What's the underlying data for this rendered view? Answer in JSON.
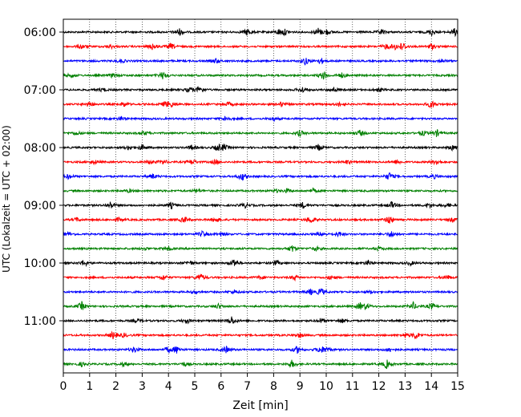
{
  "chart_data": {
    "type": "line",
    "title": "",
    "xlabel": "Zeit  [min]",
    "ylabel": "UTC (Lokalzeit = UTC + 02:00)",
    "xlim": [
      0,
      15
    ],
    "x_ticks": [
      "0",
      "1",
      "2",
      "3",
      "4",
      "5",
      "6",
      "7",
      "8",
      "9",
      "10",
      "11",
      "12",
      "13",
      "14",
      "15"
    ],
    "y_tick_labels": [
      "06:00",
      "07:00",
      "08:00",
      "09:00",
      "10:00",
      "11:00"
    ],
    "grid": "vertical dotted at each minute",
    "trace_colors": [
      "#000000",
      "#ff0000",
      "#0000ff",
      "#008000"
    ],
    "traces": [
      {
        "start": "06:00",
        "bursts": [
          [
            4.4,
            0.8
          ],
          [
            7.0,
            0.7
          ],
          [
            8.2,
            0.6
          ],
          [
            8.4,
            0.7
          ],
          [
            9.7,
            0.9
          ],
          [
            10.0,
            0.6
          ],
          [
            12.1,
            0.5
          ],
          [
            14.0,
            0.7
          ],
          [
            14.9,
            0.8
          ]
        ]
      },
      {
        "start": "06:15",
        "bursts": [
          [
            0.7,
            0.5
          ],
          [
            1.8,
            0.4
          ],
          [
            3.4,
            0.7
          ],
          [
            4.1,
            0.6
          ],
          [
            4.1,
            0.6
          ],
          [
            12.3,
            0.6
          ],
          [
            12.9,
            0.9
          ],
          [
            12.6,
            0.7
          ],
          [
            14.0,
            0.6
          ]
        ]
      },
      {
        "start": "06:30",
        "bursts": [
          [
            2.2,
            0.4
          ],
          [
            5.8,
            0.5
          ],
          [
            9.2,
            0.8
          ],
          [
            9.8,
            0.6
          ],
          [
            14.4,
            0.4
          ]
        ]
      },
      {
        "start": "06:45",
        "bursts": [
          [
            0.3,
            0.4
          ],
          [
            1.9,
            0.5
          ],
          [
            3.8,
            0.8
          ],
          [
            9.9,
            0.9
          ],
          [
            10.6,
            0.5
          ]
        ]
      },
      {
        "start": "07:00",
        "bursts": [
          [
            1.5,
            0.4
          ],
          [
            4.8,
            0.6
          ],
          [
            5.2,
            0.9
          ],
          [
            9.1,
            0.6
          ],
          [
            10.3,
            0.5
          ],
          [
            12.0,
            0.4
          ]
        ]
      },
      {
        "start": "07:15",
        "bursts": [
          [
            1.0,
            0.6
          ],
          [
            2.3,
            0.5
          ],
          [
            3.9,
            0.7
          ],
          [
            4.1,
            0.7
          ],
          [
            6.3,
            0.4
          ],
          [
            8.3,
            0.5
          ],
          [
            14.0,
            0.8
          ],
          [
            10.5,
            0.4
          ]
        ]
      },
      {
        "start": "07:30",
        "bursts": [
          [
            2.2,
            0.4
          ],
          [
            6.2,
            0.6
          ],
          [
            8.0,
            0.4
          ]
        ]
      },
      {
        "start": "07:45",
        "bursts": [
          [
            0.5,
            0.4
          ],
          [
            3.1,
            0.4
          ],
          [
            9.0,
            0.6
          ],
          [
            11.3,
            0.6
          ],
          [
            13.7,
            0.5
          ],
          [
            14.2,
            0.7
          ]
        ]
      },
      {
        "start": "08:00",
        "bursts": [
          [
            2.5,
            0.5
          ],
          [
            3.0,
            0.6
          ],
          [
            4.9,
            0.5
          ],
          [
            5.9,
            0.8
          ],
          [
            6.1,
            0.7
          ],
          [
            9.7,
            0.6
          ],
          [
            14.8,
            0.5
          ]
        ]
      },
      {
        "start": "08:15",
        "bursts": [
          [
            1.2,
            0.4
          ],
          [
            3.3,
            0.4
          ],
          [
            3.8,
            0.5
          ],
          [
            5.8,
            0.5
          ],
          [
            4.9,
            0.6
          ],
          [
            10.8,
            0.4
          ],
          [
            12.7,
            0.5
          ],
          [
            14.2,
            0.6
          ]
        ]
      },
      {
        "start": "08:30",
        "bursts": [
          [
            0.2,
            0.5
          ],
          [
            3.4,
            0.5
          ],
          [
            6.8,
            0.8
          ],
          [
            12.4,
            0.8
          ],
          [
            14.1,
            0.4
          ]
        ]
      },
      {
        "start": "08:45",
        "bursts": [
          [
            2.5,
            0.3
          ],
          [
            5.1,
            0.4
          ],
          [
            8.1,
            0.3
          ],
          [
            8.5,
            0.4
          ],
          [
            9.5,
            0.4
          ]
        ]
      },
      {
        "start": "09:00",
        "bursts": [
          [
            1.8,
            0.8
          ],
          [
            4.1,
            0.6
          ],
          [
            6.9,
            0.5
          ],
          [
            9.1,
            0.6
          ],
          [
            12.5,
            0.7
          ],
          [
            13.9,
            0.5
          ],
          [
            14.6,
            0.4
          ]
        ]
      },
      {
        "start": "09:15",
        "bursts": [
          [
            0.5,
            0.4
          ],
          [
            2.1,
            0.4
          ],
          [
            4.6,
            0.7
          ],
          [
            5.8,
            0.6
          ],
          [
            9.4,
            0.8
          ],
          [
            12.4,
            0.9
          ],
          [
            14.8,
            0.4
          ]
        ]
      },
      {
        "start": "09:30",
        "bursts": [
          [
            0.2,
            0.4
          ],
          [
            5.3,
            0.6
          ],
          [
            6.0,
            0.4
          ],
          [
            9.8,
            0.4
          ],
          [
            10.5,
            0.5
          ],
          [
            12.5,
            0.7
          ]
        ]
      },
      {
        "start": "09:45",
        "bursts": [
          [
            3.1,
            0.3
          ],
          [
            4.0,
            0.4
          ],
          [
            8.7,
            0.7
          ],
          [
            9.6,
            0.5
          ],
          [
            12.0,
            0.4
          ]
        ]
      },
      {
        "start": "10:00",
        "bursts": [
          [
            0.8,
            0.7
          ],
          [
            4.8,
            0.5
          ],
          [
            6.5,
            0.9
          ],
          [
            8.1,
            0.5
          ],
          [
            11.6,
            0.5
          ],
          [
            13.2,
            0.4
          ]
        ]
      },
      {
        "start": "10:15",
        "bursts": [
          [
            3.8,
            0.6
          ],
          [
            5.2,
            0.8
          ],
          [
            7.5,
            0.4
          ],
          [
            8.8,
            0.5
          ],
          [
            10.2,
            0.4
          ],
          [
            14.6,
            0.5
          ]
        ]
      },
      {
        "start": "10:30",
        "bursts": [
          [
            5.0,
            0.3
          ],
          [
            6.5,
            0.4
          ],
          [
            9.4,
            0.6
          ],
          [
            9.8,
            0.8
          ],
          [
            11.7,
            0.3
          ]
        ]
      },
      {
        "start": "10:45",
        "bursts": [
          [
            0.7,
            0.9
          ],
          [
            5.9,
            0.5
          ],
          [
            11.3,
            0.7
          ],
          [
            11.5,
            0.7
          ],
          [
            13.3,
            0.8
          ],
          [
            14.0,
            0.6
          ]
        ]
      },
      {
        "start": "11:00",
        "bursts": [
          [
            2.8,
            0.4
          ],
          [
            4.7,
            0.5
          ],
          [
            6.4,
            0.9
          ],
          [
            9.8,
            0.5
          ],
          [
            10.6,
            0.4
          ]
        ]
      },
      {
        "start": "11:15",
        "bursts": [
          [
            1.9,
            0.8
          ],
          [
            2.3,
            0.4
          ],
          [
            9.0,
            0.5
          ],
          [
            13.4,
            0.8
          ],
          [
            13.0,
            0.5
          ]
        ]
      },
      {
        "start": "11:30",
        "bursts": [
          [
            2.7,
            0.6
          ],
          [
            4.0,
            0.7
          ],
          [
            4.3,
            0.8
          ],
          [
            6.2,
            0.7
          ],
          [
            8.9,
            0.7
          ],
          [
            9.8,
            0.9
          ],
          [
            10.0,
            0.6
          ],
          [
            12.4,
            0.5
          ]
        ]
      },
      {
        "start": "11:45",
        "bursts": [
          [
            0.7,
            0.4
          ],
          [
            2.3,
            0.4
          ],
          [
            4.6,
            0.4
          ],
          [
            8.7,
            0.8
          ],
          [
            12.3,
            0.9
          ]
        ]
      }
    ]
  }
}
